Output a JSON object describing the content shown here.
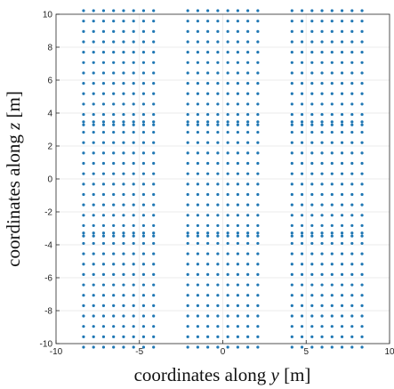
{
  "chart_data": {
    "type": "scatter",
    "title": "",
    "xlabel_text": "coordinates along ",
    "xlabel_var": "y",
    "xlabel_unit": " [m]",
    "ylabel_text": "coordinates along ",
    "ylabel_var": "z",
    "ylabel_unit": " [m]",
    "xlim": [
      -10,
      10
    ],
    "ylim": [
      -10,
      10
    ],
    "xticks": [
      -10,
      -5,
      0,
      5,
      10
    ],
    "yticks": [
      -10,
      -8,
      -6,
      -4,
      -2,
      0,
      2,
      4,
      6,
      8,
      10
    ],
    "grid": true,
    "point_color": "#1f77b4",
    "cluster_centers_y": [
      -6.25,
      0,
      6.25
    ],
    "cluster_centers_z": [
      -6.75,
      0,
      6.75
    ],
    "points_per_cluster_row": 8,
    "points_per_cluster_col": 12,
    "point_spacing_y": 0.6,
    "point_spacing_z": 0.63
  }
}
